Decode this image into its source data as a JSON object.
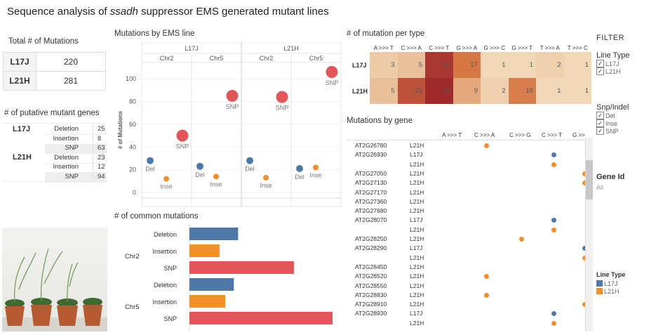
{
  "title": {
    "prefix": "Sequence analysis of ",
    "emph": "ssadh",
    "suffix": " suppressor EMS generated mutant lines"
  },
  "total_mutations": {
    "heading": "Total # of Mutations",
    "rows": [
      {
        "line": "L17J",
        "value": "220"
      },
      {
        "line": "L21H",
        "value": "281"
      }
    ]
  },
  "putative_genes": {
    "heading": "# of putative mutant genes",
    "groups": [
      {
        "line": "L17J",
        "rows": [
          {
            "type": "Deletion",
            "value": "25"
          },
          {
            "type": "Insertion",
            "value": "8"
          },
          {
            "type": "SNP",
            "value": "63"
          }
        ]
      },
      {
        "line": "L21H",
        "rows": [
          {
            "type": "Deletion",
            "value": "23"
          },
          {
            "type": "Insertion",
            "value": "12"
          },
          {
            "type": "SNP",
            "value": "94"
          }
        ]
      }
    ]
  },
  "ems_chart": {
    "heading": "Mutations by EMS line",
    "ylabel": "# of Mutations",
    "lines": [
      "L17J",
      "L21H"
    ],
    "chromosomes": [
      "Chr2",
      "Chr5"
    ],
    "xcats": [
      "Del",
      "Inse",
      "SNP"
    ]
  },
  "common_chart": {
    "heading": "# of common mutations",
    "groups": [
      "Chr2",
      "Chr5"
    ],
    "types": [
      "Deletion",
      "Insertion",
      "SNP"
    ]
  },
  "heatmap": {
    "heading": "# of mutation per type",
    "columns": [
      "A >>> T",
      "C >>> A",
      "C >>> T",
      "G >>> A",
      "G >>> C",
      "G >>> T",
      "T >>> A",
      "T >>> C"
    ],
    "rows": [
      {
        "line": "L17J",
        "values": [
          "3",
          "5",
          "31",
          "17",
          "1",
          "1",
          "2",
          "1"
        ]
      },
      {
        "line": "L21H",
        "values": [
          "5",
          "25",
          "34",
          "9",
          "2",
          "16",
          "1",
          "1"
        ]
      }
    ]
  },
  "genes_chart": {
    "heading": "Mutations by gene",
    "columns": [
      "A >>> T",
      "C >>> A",
      "C >>> G",
      "C >>> T",
      "G >>> A"
    ],
    "rows": [
      {
        "gene": "AT2G26780",
        "line": "L21H"
      },
      {
        "gene": "AT2G26930",
        "line": "L17J"
      },
      {
        "gene": "",
        "line": "L21H"
      },
      {
        "gene": "AT2G27050",
        "line": "L21H"
      },
      {
        "gene": "AT2G27130",
        "line": "L21H"
      },
      {
        "gene": "AT2G27170",
        "line": "L21H"
      },
      {
        "gene": "AT2G27360",
        "line": "L21H"
      },
      {
        "gene": "AT2G27880",
        "line": "L21H"
      },
      {
        "gene": "AT2G28070",
        "line": "L17J"
      },
      {
        "gene": "",
        "line": "L21H"
      },
      {
        "gene": "AT2G28250",
        "line": "L21H"
      },
      {
        "gene": "AT2G28290",
        "line": "L17J"
      },
      {
        "gene": "",
        "line": "L21H"
      },
      {
        "gene": "AT2G28450",
        "line": "L21H"
      },
      {
        "gene": "AT2G28520",
        "line": "L21H"
      },
      {
        "gene": "AT2G28550",
        "line": "L21H"
      },
      {
        "gene": "AT2G28830",
        "line": "L21H"
      },
      {
        "gene": "AT2G28910",
        "line": "L21H"
      },
      {
        "gene": "AT2G28930",
        "line": "L17J"
      },
      {
        "gene": "",
        "line": "L21H"
      }
    ]
  },
  "filter": {
    "heading": "FILTER",
    "line_type": {
      "label": "Line Type",
      "options": [
        "L17J",
        "L21H"
      ]
    },
    "snp_indel": {
      "label": "Snp/Indel",
      "options": [
        "Del",
        "Inse",
        "SNP"
      ]
    },
    "gene_id": {
      "label": "Gene Id",
      "value": "All"
    },
    "legend": {
      "label": "Line Type",
      "items": [
        "L17J",
        "L21H"
      ]
    }
  },
  "colors": {
    "L17J": "#4e79a7",
    "L21H": "#f28e2b",
    "SNP": "#e15759"
  },
  "chart_data": [
    {
      "type": "scatter",
      "title": "Mutations by EMS line",
      "ylabel": "# of Mutations",
      "ylim": [
        0,
        110
      ],
      "yticks": [
        0,
        20,
        40,
        60,
        80,
        100
      ],
      "panels": [
        {
          "line": "L17J",
          "chr": "Chr2",
          "x": [
            "Del",
            "Inse",
            "SNP"
          ],
          "y": [
            28,
            12,
            50
          ]
        },
        {
          "line": "L17J",
          "chr": "Chr5",
          "x": [
            "Del",
            "Inse",
            "SNP"
          ],
          "y": [
            23,
            14,
            85
          ]
        },
        {
          "line": "L21H",
          "chr": "Chr2",
          "x": [
            "Del",
            "Inse",
            "SNP"
          ],
          "y": [
            28,
            13,
            84
          ]
        },
        {
          "line": "L21H",
          "chr": "Chr5",
          "x": [
            "Del",
            "Inse",
            "SNP"
          ],
          "y": [
            21,
            22,
            106
          ]
        }
      ]
    },
    {
      "type": "bar",
      "title": "# of common mutations",
      "groups": [
        {
          "chr": "Chr2",
          "categories": [
            "Deletion",
            "Insertion",
            "SNP"
          ],
          "values": [
            0.34,
            0.21,
            0.73
          ]
        },
        {
          "chr": "Chr5",
          "categories": [
            "Deletion",
            "Insertion",
            "SNP"
          ],
          "values": [
            0.31,
            0.25,
            1.0
          ]
        }
      ]
    },
    {
      "type": "heatmap",
      "title": "# of mutation per type",
      "x": [
        "A >>> T",
        "C >>> A",
        "C >>> T",
        "G >>> A",
        "G >>> C",
        "G >>> T",
        "T >>> A",
        "T >>> C"
      ],
      "y": [
        "L17J",
        "L21H"
      ],
      "values": [
        [
          3,
          5,
          31,
          17,
          1,
          1,
          2,
          1
        ],
        [
          5,
          25,
          34,
          9,
          2,
          16,
          1,
          1
        ]
      ]
    },
    {
      "type": "scatter",
      "title": "Mutations by gene",
      "points": [
        {
          "row": 0,
          "col": "C >>> A",
          "line": "L21H"
        },
        {
          "row": 1,
          "col": "C >>> T",
          "line": "L17J"
        },
        {
          "row": 2,
          "col": "C >>> T",
          "line": "L21H"
        },
        {
          "row": 3,
          "col": "G >>> A",
          "line": "L21H"
        },
        {
          "row": 4,
          "col": "G >>> A",
          "line": "L21H"
        },
        {
          "row": 8,
          "col": "C >>> T",
          "line": "L17J"
        },
        {
          "row": 9,
          "col": "C >>> T",
          "line": "L21H"
        },
        {
          "row": 10,
          "col": "C >>> G",
          "line": "L21H"
        },
        {
          "row": 11,
          "col": "G >>> A",
          "line": "L17J"
        },
        {
          "row": 12,
          "col": "G >>> A",
          "line": "L21H"
        },
        {
          "row": 14,
          "col": "C >>> A",
          "line": "L21H"
        },
        {
          "row": 16,
          "col": "C >>> A",
          "line": "L21H"
        },
        {
          "row": 17,
          "col": "G >>> A",
          "line": "L21H"
        },
        {
          "row": 18,
          "col": "C >>> T",
          "line": "L17J"
        },
        {
          "row": 19,
          "col": "C >>> T",
          "line": "L21H"
        }
      ]
    }
  ]
}
